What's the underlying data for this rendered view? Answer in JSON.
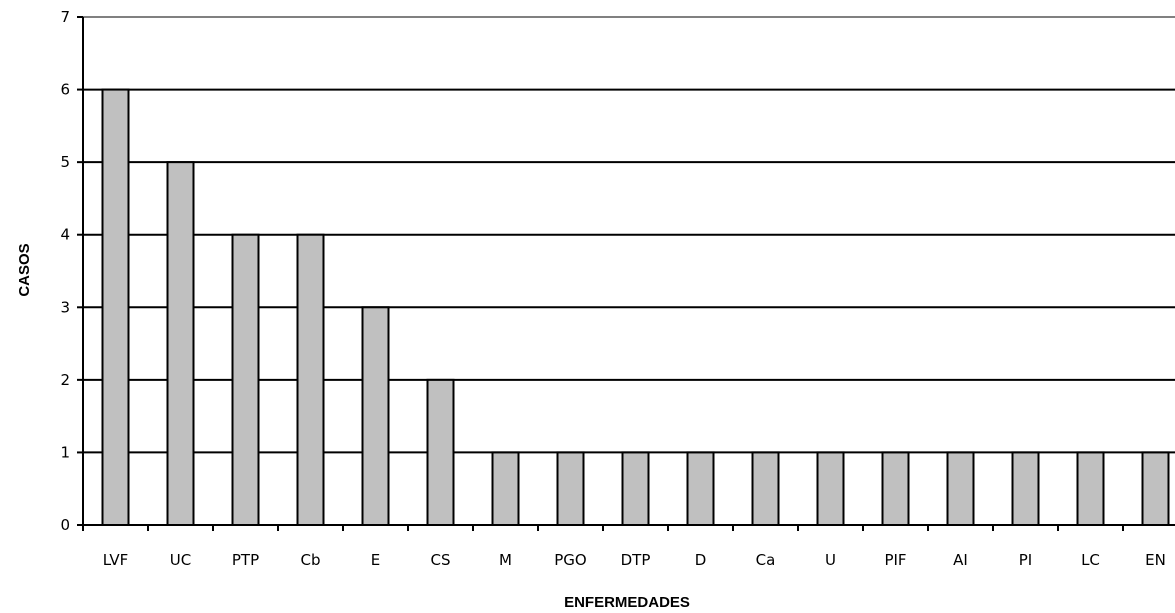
{
  "chart_data": {
    "type": "bar",
    "title": "",
    "xlabel": "ENFERMEDADES",
    "ylabel": "CASOS",
    "categories": [
      "LVF",
      "UC",
      "PTP",
      "Cb",
      "E",
      "CS",
      "M",
      "PGO",
      "DTP",
      "D",
      "Ca",
      "U",
      "PIF",
      "AI",
      "PI",
      "LC",
      "EN"
    ],
    "values": [
      6,
      5,
      4,
      4,
      3,
      2,
      1,
      1,
      1,
      1,
      1,
      1,
      1,
      1,
      1,
      1,
      1
    ],
    "ylim": [
      0,
      7
    ],
    "yticks": [
      "0",
      "1",
      "2",
      "3",
      "4",
      "5",
      "6",
      "7"
    ],
    "grid": true,
    "legend": "none",
    "colors": {
      "bar_fill": "#c0c0c0",
      "bar_stroke": "#000000",
      "grid": "#000000",
      "top_line": "#808080"
    }
  }
}
